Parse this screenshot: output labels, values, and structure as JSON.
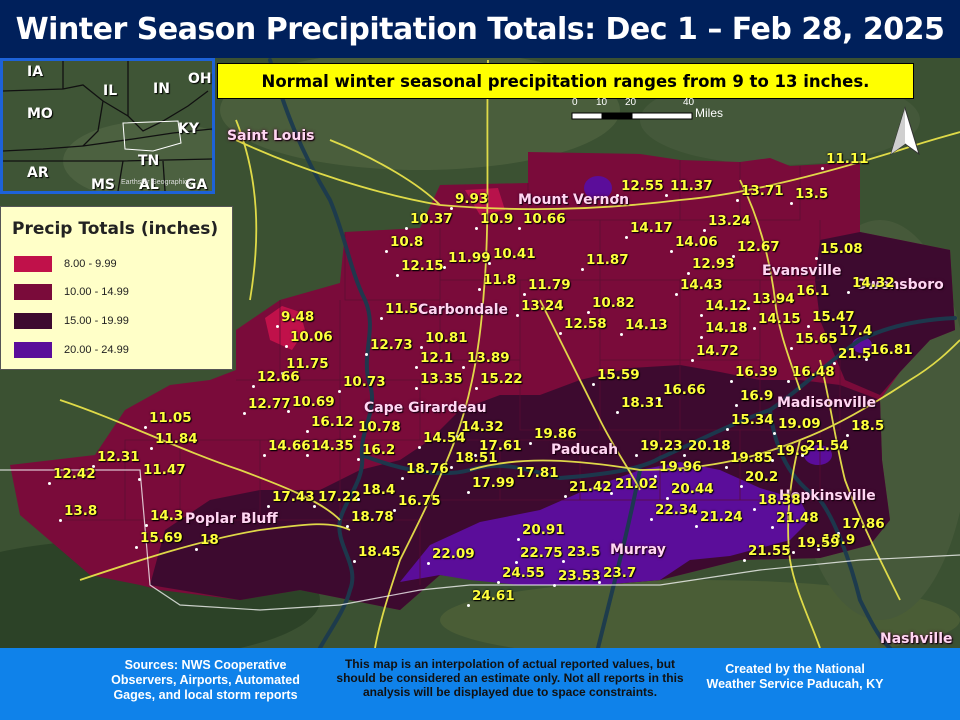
{
  "title": "Winter Season Precipitation Totals: Dec 1 – Feb 28, 2025",
  "normal_note": "Normal winter seasonal precipitation ranges from 9 to 13 inches.",
  "scale": {
    "ticks": [
      "0",
      "10",
      "20",
      "40"
    ],
    "unit": "Miles"
  },
  "inset": {
    "states": [
      "IA",
      "IL",
      "IN",
      "OH",
      "MO",
      "KY",
      "TN",
      "AR",
      "MS",
      "AL",
      "GA"
    ],
    "attribution": "Earthstar Geographics"
  },
  "legend": {
    "title": "Precip Totals (inches)",
    "bins": [
      {
        "label": "8.00 - 9.99",
        "color": "#c0114a"
      },
      {
        "label": "10.00 - 14.99",
        "color": "#7a0b3a"
      },
      {
        "label": "15.00 - 19.99",
        "color": "#3d0a2f"
      },
      {
        "label": "20.00 - 24.99",
        "color": "#5b0d9a"
      }
    ]
  },
  "cities": [
    "Saint Louis",
    "Mount Vernon",
    "Evansville",
    "Owensboro",
    "Carbondale",
    "Cape Girardeau",
    "Madisonville",
    "Paducah",
    "Hopkinsville",
    "Poplar Bluff",
    "Murray",
    "Nashville"
  ],
  "observations": [
    "11.11",
    "12.55",
    "11.37",
    "13.71",
    "13.5",
    "9.93",
    "10.37",
    "10.9",
    "10.66",
    "14.17",
    "13.24",
    "15.08",
    "10.8",
    "14.06",
    "12.67",
    "12.15",
    "11.99",
    "10.41",
    "11.87",
    "12.93",
    "11.8",
    "11.79",
    "14.43",
    "16.1",
    "14.32",
    "11.5",
    "9.48",
    "13.24",
    "10.82",
    "14.12",
    "13.94",
    "10.06",
    "12.58",
    "14.13",
    "14.18",
    "14.15",
    "15.47",
    "17.4",
    "12.73",
    "10.81",
    "12.1",
    "13.89",
    "15.65",
    "21.5",
    "16.81",
    "11.75",
    "14.72",
    "12.66",
    "13.35",
    "15.22",
    "10.73",
    "15.59",
    "16.39",
    "16.48",
    "12.77",
    "10.69",
    "18.31",
    "16.66",
    "16.9",
    "11.05",
    "16.12",
    "10.78",
    "14.32",
    "15.34",
    "19.09",
    "18.5",
    "11.84",
    "14.66",
    "14.35",
    "16.2",
    "14.54",
    "17.61",
    "19.86",
    "19.23",
    "20.18",
    "19.85",
    "19.9",
    "21.54",
    "12.31",
    "18.51",
    "19.96",
    "12.42",
    "11.47",
    "18.76",
    "17.81",
    "20.2",
    "17.99",
    "21.42",
    "21.02",
    "20.44",
    "17.43",
    "17.22",
    "18.4",
    "16.75",
    "18.38",
    "14.3",
    "13.8",
    "18.78",
    "22.34",
    "21.24",
    "21.48",
    "17.86",
    "15.69",
    "18",
    "20.91",
    "18.9",
    "18.45",
    "22.09",
    "22.75",
    "23.5",
    "21.55",
    "19.59",
    "24.55",
    "23.53",
    "23.7",
    "24.61"
  ],
  "footer": {
    "sources": "Sources: NWS Cooperative Observers, Airports, Automated Gages, and local storm reports",
    "disclaimer": "This map is an interpolation of actual reported values, but should be considered an estimate only. Not all reports in this analysis will be displayed due to space constraints.",
    "credit": "Created by the National Weather Service Paducah, KY"
  },
  "colors": {
    "title_bg": "#00205b",
    "note_bg": "#ffff00",
    "footer_bg": "#0f82ea",
    "value_text": "#ffff3c",
    "city_text": "#ffd6f2",
    "roads": "#e8e24a",
    "rivers": "#1b3a4e"
  }
}
